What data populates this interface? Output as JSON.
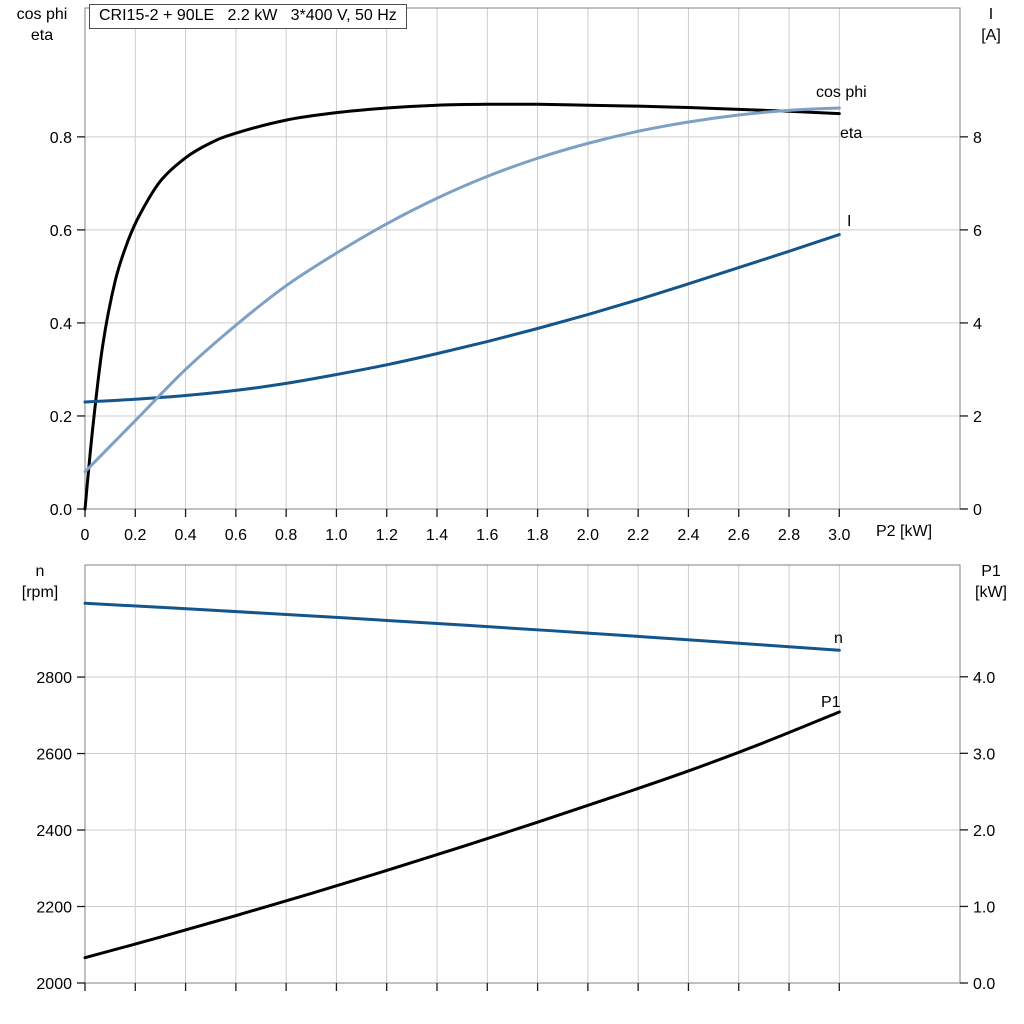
{
  "style": {
    "grid_color": "#cdcdcd",
    "frame_color": "#828282",
    "tick_color": "#1a1a1a",
    "text_color": "#000000",
    "black": "#000000",
    "light_blue": "#7ea0c5",
    "dark_blue": "#14558c"
  },
  "title_box": {
    "text": "CRI15-2 + 90LE   2.2 kW   3*400 V, 50 Hz"
  },
  "chart_data": [
    {
      "id": "motor-efficiency-panel",
      "type": "line",
      "title": "CRI15-2 + 90LE   2.2 kW   3*400 V, 50 Hz",
      "xlabel": "P2 [kW]",
      "grid": true,
      "legend": "inline-curve-labels",
      "xlim": [
        0,
        3.48
      ],
      "x_ticks": [
        0,
        0.2,
        0.4,
        0.6,
        0.8,
        1.0,
        1.2,
        1.4,
        1.6,
        1.8,
        2.0,
        2.2,
        2.4,
        2.6,
        2.8,
        3.0
      ],
      "x_tick_labels": [
        "0",
        "0.2",
        "0.4",
        "0.6",
        "0.8",
        "1.0",
        "1.2",
        "1.4",
        "1.6",
        "1.8",
        "2.0",
        "2.2",
        "2.4",
        "2.6",
        "2.8",
        "3.0"
      ],
      "left_axis": {
        "label_lines": [
          "cos phi",
          "eta"
        ],
        "lim": [
          0,
          1.077
        ],
        "ticks": [
          0,
          0.2,
          0.4,
          0.6,
          0.8
        ],
        "tick_labels": [
          "0.0",
          "0.2",
          "0.4",
          "0.6",
          "0.8"
        ]
      },
      "right_axis": {
        "label_lines": [
          "I",
          "[A]"
        ],
        "lim": [
          0,
          10.77
        ],
        "ticks": [
          0,
          2,
          4,
          6,
          8
        ],
        "tick_labels": [
          "0",
          "2",
          "4",
          "6",
          "8"
        ]
      },
      "series": [
        {
          "name": "eta",
          "axis": "left",
          "color": "#000000",
          "x": [
            0,
            0.03,
            0.07,
            0.12,
            0.17,
            0.22,
            0.3,
            0.4,
            0.5,
            0.6,
            0.8,
            1.0,
            1.2,
            1.4,
            1.6,
            1.8,
            2.0,
            2.2,
            2.4,
            2.6,
            2.8,
            3.0
          ],
          "values": [
            0,
            0.17,
            0.35,
            0.49,
            0.575,
            0.635,
            0.705,
            0.755,
            0.787,
            0.808,
            0.836,
            0.852,
            0.862,
            0.868,
            0.87,
            0.87,
            0.868,
            0.866,
            0.863,
            0.859,
            0.855,
            0.85
          ]
        },
        {
          "name": "I",
          "axis": "right",
          "color": "#14558c",
          "x": [
            0,
            0.2,
            0.4,
            0.6,
            0.8,
            1.0,
            1.2,
            1.4,
            1.6,
            1.8,
            2.0,
            2.2,
            2.4,
            2.6,
            2.8,
            3.0
          ],
          "values": [
            2.3,
            2.36,
            2.44,
            2.55,
            2.7,
            2.89,
            3.1,
            3.34,
            3.6,
            3.88,
            4.18,
            4.5,
            4.84,
            5.19,
            5.54,
            5.9
          ]
        },
        {
          "name": "cos phi",
          "axis": "left",
          "color": "#7ea0c5",
          "x": [
            0,
            0.2,
            0.4,
            0.6,
            0.8,
            1.0,
            1.2,
            1.4,
            1.6,
            1.8,
            2.0,
            2.2,
            2.4,
            2.6,
            2.8,
            3.0
          ],
          "values": [
            0.08,
            0.19,
            0.3,
            0.395,
            0.48,
            0.55,
            0.613,
            0.668,
            0.715,
            0.754,
            0.786,
            0.812,
            0.832,
            0.847,
            0.857,
            0.862
          ]
        }
      ]
    },
    {
      "id": "speed-power-panel",
      "type": "line",
      "title": "",
      "xlabel": "",
      "grid": true,
      "legend": "inline-curve-labels",
      "xlim": [
        0,
        3.48
      ],
      "x_ticks": [
        0,
        0.2,
        0.4,
        0.6,
        0.8,
        1.0,
        1.2,
        1.4,
        1.6,
        1.8,
        2.0,
        2.2,
        2.4,
        2.6,
        2.8,
        3.0
      ],
      "left_axis": {
        "label_lines": [
          "n",
          "[rpm]"
        ],
        "lim": [
          2000,
          3093
        ],
        "ticks": [
          2000,
          2200,
          2400,
          2600,
          2800
        ],
        "tick_labels": [
          "2000",
          "2200",
          "2400",
          "2600",
          "2800"
        ]
      },
      "right_axis": {
        "label_lines": [
          "P1",
          "[kW]"
        ],
        "lim": [
          0,
          5.46
        ],
        "ticks": [
          0,
          1,
          2,
          3,
          4
        ],
        "tick_labels": [
          "0.0",
          "1.0",
          "2.0",
          "3.0",
          "4.0"
        ]
      },
      "series": [
        {
          "name": "n",
          "axis": "left",
          "color": "#14558c",
          "x": [
            0,
            0.5,
            1.0,
            1.5,
            2.0,
            2.5,
            3.0
          ],
          "values": [
            2993,
            2975,
            2956,
            2936,
            2915,
            2893,
            2870
          ]
        },
        {
          "name": "P1",
          "axis": "right",
          "color": "#000000",
          "x": [
            0,
            0.3,
            0.6,
            0.9,
            1.2,
            1.5,
            1.8,
            2.1,
            2.4,
            2.7,
            3.0
          ],
          "values": [
            0.33,
            0.6,
            0.88,
            1.17,
            1.47,
            1.78,
            2.1,
            2.43,
            2.77,
            3.14,
            3.54
          ]
        }
      ]
    }
  ]
}
